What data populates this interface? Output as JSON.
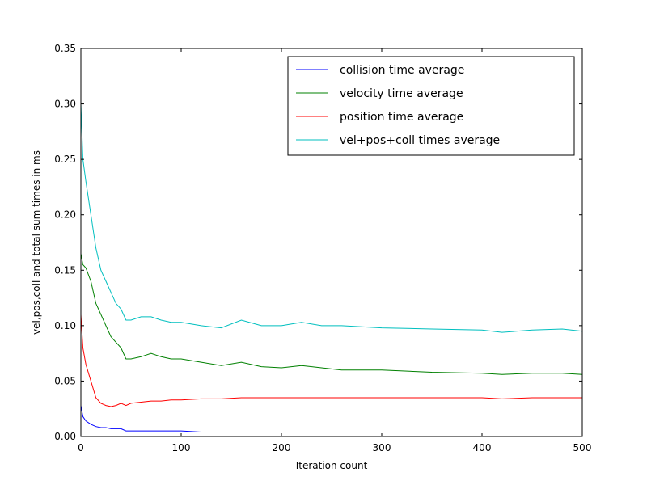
{
  "chart_data": {
    "type": "line",
    "title": "",
    "xlabel": "Iteration count",
    "ylabel": "vel,pos,coll and total sum times in ms",
    "xlim": [
      0,
      500
    ],
    "ylim": [
      0,
      0.35
    ],
    "xticks": [
      0,
      100,
      200,
      300,
      400,
      500
    ],
    "yticks": [
      0.0,
      0.05,
      0.1,
      0.15,
      0.2,
      0.25,
      0.3,
      0.35
    ],
    "xtick_labels": [
      "0",
      "100",
      "200",
      "300",
      "400",
      "500"
    ],
    "ytick_labels": [
      "0.00",
      "0.05",
      "0.10",
      "0.15",
      "0.20",
      "0.25",
      "0.30",
      "0.35"
    ],
    "grid": false,
    "legend_position": "top-right",
    "x": [
      0,
      2,
      5,
      10,
      15,
      20,
      25,
      30,
      35,
      40,
      45,
      50,
      60,
      70,
      80,
      90,
      100,
      120,
      140,
      160,
      180,
      200,
      220,
      240,
      260,
      280,
      300,
      350,
      400,
      420,
      450,
      480,
      500
    ],
    "series": [
      {
        "name": "collision time average",
        "color": "#0000ff",
        "values": [
          0.028,
          0.018,
          0.014,
          0.011,
          0.009,
          0.008,
          0.008,
          0.007,
          0.007,
          0.007,
          0.005,
          0.005,
          0.005,
          0.005,
          0.005,
          0.005,
          0.005,
          0.004,
          0.004,
          0.004,
          0.004,
          0.004,
          0.004,
          0.004,
          0.004,
          0.004,
          0.004,
          0.004,
          0.004,
          0.004,
          0.004,
          0.004,
          0.004
        ]
      },
      {
        "name": "velocity time average",
        "color": "#008000",
        "values": [
          0.165,
          0.155,
          0.152,
          0.14,
          0.12,
          0.11,
          0.1,
          0.09,
          0.085,
          0.08,
          0.07,
          0.07,
          0.072,
          0.075,
          0.072,
          0.07,
          0.07,
          0.067,
          0.064,
          0.067,
          0.063,
          0.062,
          0.064,
          0.062,
          0.06,
          0.06,
          0.06,
          0.058,
          0.057,
          0.056,
          0.057,
          0.057,
          0.056
        ]
      },
      {
        "name": "position time average",
        "color": "#ff0000",
        "values": [
          0.11,
          0.08,
          0.065,
          0.05,
          0.035,
          0.03,
          0.028,
          0.027,
          0.028,
          0.03,
          0.028,
          0.03,
          0.031,
          0.032,
          0.032,
          0.033,
          0.033,
          0.034,
          0.034,
          0.035,
          0.035,
          0.035,
          0.035,
          0.035,
          0.035,
          0.035,
          0.035,
          0.035,
          0.035,
          0.034,
          0.035,
          0.035,
          0.035
        ]
      },
      {
        "name": "vel+pos+coll times average",
        "color": "#00bfbf",
        "values": [
          0.3,
          0.25,
          0.23,
          0.2,
          0.17,
          0.15,
          0.14,
          0.13,
          0.12,
          0.115,
          0.105,
          0.105,
          0.108,
          0.108,
          0.105,
          0.103,
          0.103,
          0.1,
          0.098,
          0.105,
          0.1,
          0.1,
          0.103,
          0.1,
          0.1,
          0.099,
          0.098,
          0.097,
          0.096,
          0.094,
          0.096,
          0.097,
          0.095
        ]
      }
    ]
  }
}
